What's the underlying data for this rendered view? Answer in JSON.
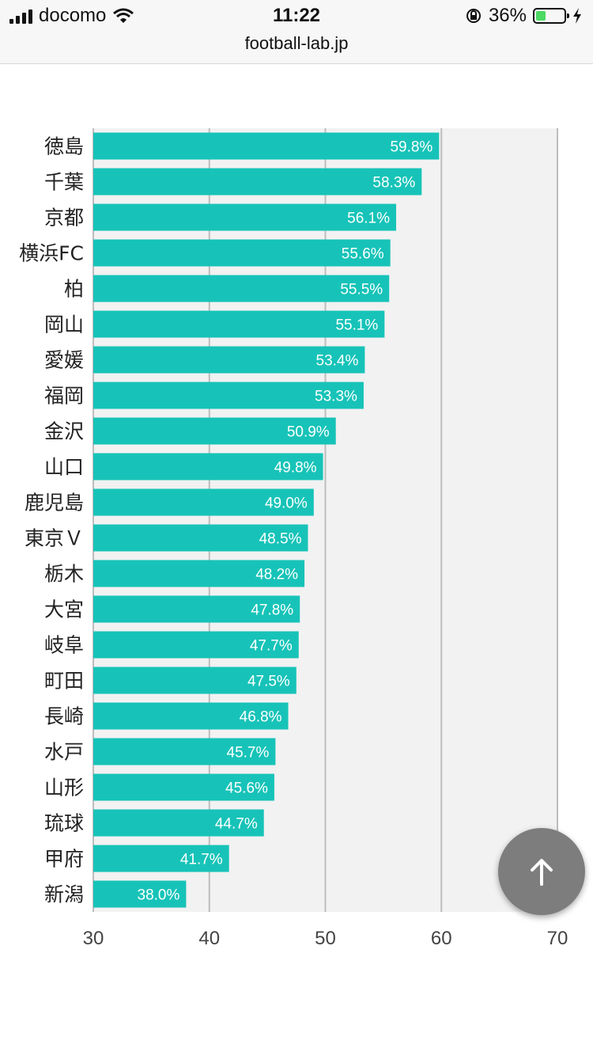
{
  "status_bar": {
    "carrier": "docomo",
    "time": "11:22",
    "battery_percent": "36%",
    "battery_level": 0.36,
    "battery_fill_color": "#4cd964",
    "icons": [
      "signal-icon",
      "wifi-icon",
      "orientation-lock-icon",
      "battery-icon",
      "charging-icon"
    ]
  },
  "browser": {
    "url": "football-lab.jp"
  },
  "scroll_to_top": {
    "icon": "arrow-up-icon"
  },
  "chart_data": {
    "type": "bar",
    "orientation": "horizontal",
    "categories": [
      "徳島",
      "千葉",
      "京都",
      "横浜FC",
      "柏",
      "岡山",
      "愛媛",
      "福岡",
      "金沢",
      "山口",
      "鹿児島",
      "東京Ｖ",
      "栃木",
      "大宮",
      "岐阜",
      "町田",
      "長崎",
      "水戸",
      "山形",
      "琉球",
      "甲府",
      "新潟"
    ],
    "values": [
      59.8,
      58.3,
      56.1,
      55.6,
      55.5,
      55.1,
      53.4,
      53.3,
      50.9,
      49.8,
      49.0,
      48.5,
      48.2,
      47.8,
      47.7,
      47.5,
      46.8,
      45.7,
      45.6,
      44.7,
      41.7,
      38.0
    ],
    "value_labels": [
      "59.8%",
      "58.3%",
      "56.1%",
      "55.6%",
      "55.5%",
      "55.1%",
      "53.4%",
      "53.3%",
      "50.9%",
      "49.8%",
      "49.0%",
      "48.5%",
      "48.2%",
      "47.8%",
      "47.7%",
      "47.5%",
      "46.8%",
      "45.7%",
      "45.6%",
      "44.7%",
      "41.7%",
      "38.0%"
    ],
    "xlim": [
      30,
      70
    ],
    "x_ticks": [
      30,
      40,
      50,
      60,
      70
    ],
    "grid": true,
    "bar_color": "#17c3b8",
    "plot_background": "#f2f2f2"
  }
}
